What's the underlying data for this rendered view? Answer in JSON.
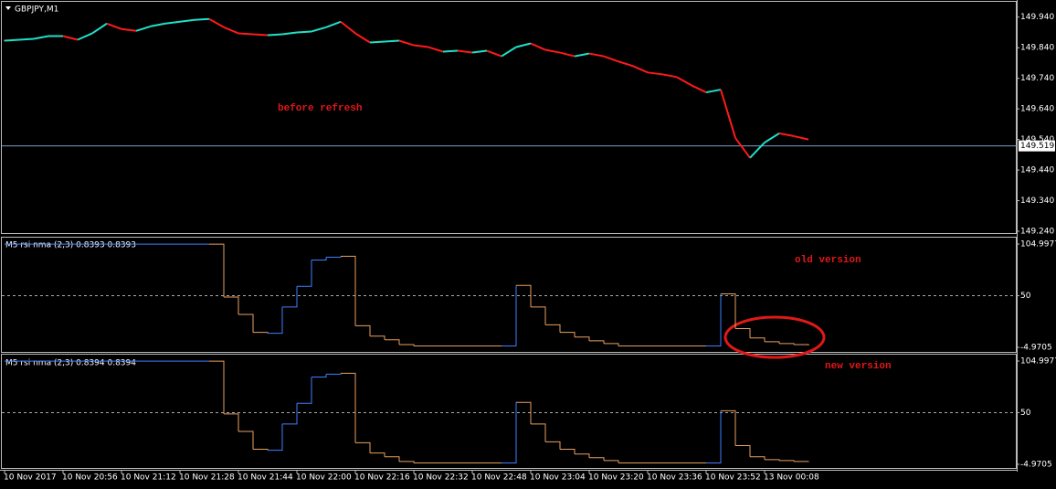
{
  "chart_data": [
    {
      "type": "line",
      "title": "GBPJPY,M1",
      "annotation": "before refresh",
      "values": [
        149.863,
        149.866,
        149.869,
        149.878,
        149.878,
        149.866,
        149.887,
        149.919,
        149.901,
        149.895,
        149.91,
        149.919,
        149.925,
        149.931,
        149.934,
        149.907,
        149.887,
        149.884,
        149.881,
        149.884,
        149.89,
        149.893,
        149.907,
        149.925,
        149.887,
        149.857,
        149.86,
        149.863,
        149.848,
        149.842,
        149.827,
        149.83,
        149.824,
        149.83,
        149.812,
        149.842,
        149.854,
        149.833,
        149.824,
        149.812,
        149.821,
        149.812,
        149.795,
        149.78,
        149.759,
        149.753,
        149.744,
        149.717,
        149.694,
        149.703,
        149.545,
        149.48,
        149.53,
        149.56,
        149.551,
        149.54
      ],
      "color": "#ff1a1a",
      "up_color": "#20e0c8",
      "ylim": [
        149.234,
        149.99
      ],
      "yticks": [
        {
          "value": 149.94,
          "label": "149.940"
        },
        {
          "value": 149.84,
          "label": "149.840"
        },
        {
          "value": 149.74,
          "label": "149.740"
        },
        {
          "value": 149.64,
          "label": "149.640"
        },
        {
          "value": 149.54,
          "label": "149.540"
        },
        {
          "value": 149.44,
          "label": "149.440"
        },
        {
          "value": 149.34,
          "label": "149.340"
        },
        {
          "value": 149.24,
          "label": "149.240"
        }
      ],
      "last_price": 149.519
    },
    {
      "type": "step",
      "title": "M5 rsi nma (2,3) 0.8393 0.8393",
      "annotation": "old version",
      "values": [
        104.9,
        104.9,
        104.9,
        104.9,
        104.9,
        104.9,
        104.9,
        104.9,
        104.9,
        104.9,
        104.9,
        104.9,
        104.9,
        104.9,
        104.9,
        48.6,
        30,
        11,
        10,
        38,
        60,
        88,
        91,
        92,
        18,
        7,
        3,
        -2,
        -3.5,
        -3.5,
        -3.5,
        -3.5,
        -3.5,
        -3.5,
        -3.5,
        61,
        38,
        19,
        11,
        6,
        2,
        -1,
        -3.5,
        -3.5,
        -3.5,
        -3.5,
        -3.5,
        -3.5,
        -3.5,
        52,
        15,
        5,
        1,
        -1,
        -2,
        -3
      ],
      "color": "#e8a060",
      "up_color": "#3d80ff",
      "ylim": [
        -9.84,
        111.8
      ],
      "yticks": [
        104.9977,
        50,
        -4.9705
      ],
      "levels": [
        50
      ]
    },
    {
      "type": "step",
      "title": "M5 rsi nma (2,3) 0.8394 0.8394",
      "annotation": "new version",
      "values": [
        104.9,
        104.9,
        104.9,
        104.9,
        104.9,
        104.9,
        104.9,
        104.9,
        104.9,
        104.9,
        104.9,
        104.9,
        104.9,
        104.9,
        104.9,
        48.6,
        30,
        11,
        10,
        38,
        60,
        88,
        91,
        92,
        18,
        7,
        3,
        -2,
        -3.5,
        -3.5,
        -3.5,
        -3.5,
        -3.5,
        -3.5,
        -3.5,
        61,
        38,
        19,
        11,
        6,
        2,
        -1,
        -3.5,
        -3.5,
        -3.5,
        -3.5,
        -3.5,
        -3.5,
        -3.5,
        52,
        15,
        3,
        0,
        -1,
        -2,
        -2.5
      ],
      "color": "#e8a060",
      "up_color": "#3d80ff",
      "ylim": [
        -8.9,
        111.8
      ],
      "yticks": [
        104.9977,
        50,
        -4.9705
      ],
      "levels": [
        50
      ],
      "categories": [
        "10 Nov 2017",
        null,
        null,
        null,
        "10 Nov 20:56",
        null,
        null,
        null,
        "10 Nov 21:12",
        null,
        null,
        null,
        "10 Nov 21:28",
        null,
        null,
        null,
        "10 Nov 21:44",
        null,
        null,
        null,
        "10 Nov 22:00",
        null,
        null,
        null,
        "10 Nov 22:16",
        null,
        null,
        null,
        "10 Nov 22:32",
        null,
        null,
        null,
        "10 Nov 22:48",
        null,
        null,
        null,
        "10 Nov 23:04",
        null,
        null,
        null,
        "10 Nov 23:20",
        null,
        null,
        null,
        "10 Nov 23:36",
        null,
        null,
        null,
        "10 Nov 23:52",
        null,
        null,
        null,
        "13 Nov 00:08",
        null,
        null,
        null
      ]
    }
  ]
}
